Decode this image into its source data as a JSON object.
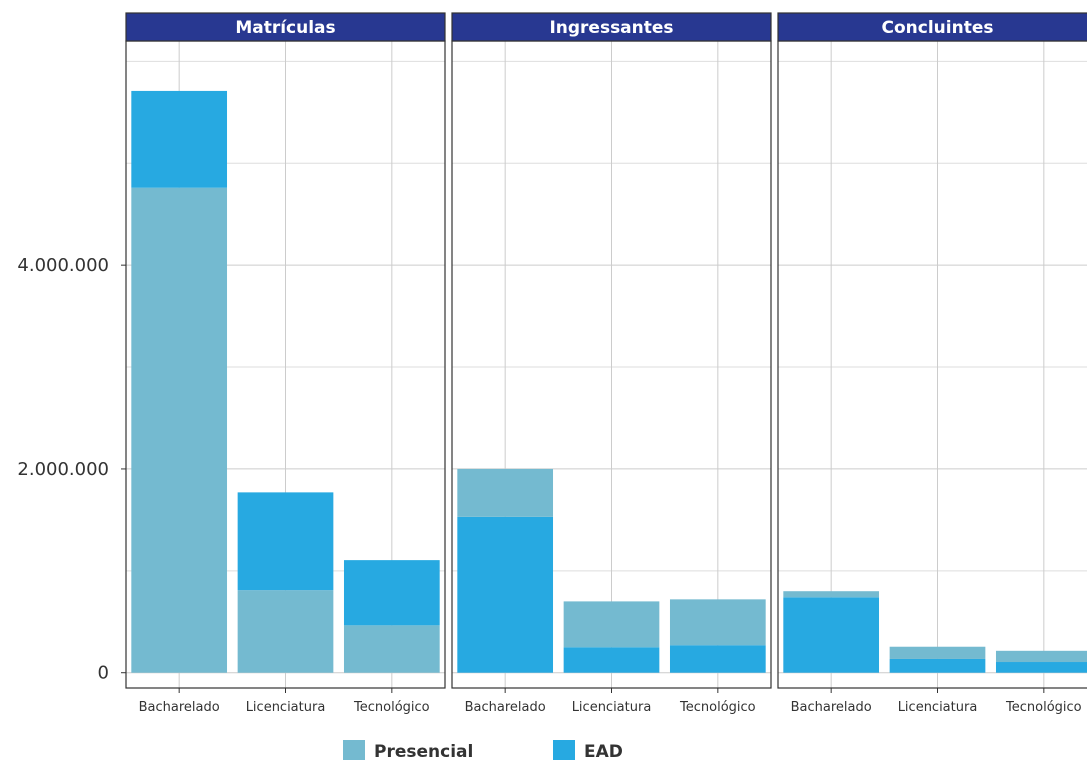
{
  "chart_data": {
    "type": "bar",
    "stacked": true,
    "facets": [
      "Matrículas",
      "Ingressantes",
      "Concluintes"
    ],
    "categories": [
      "Bacharelado",
      "Licenciatura",
      "Tecnológico"
    ],
    "series": [
      {
        "name": "Presencial",
        "color": "#74bad0"
      },
      {
        "name": "EAD",
        "color": "#27a9e1"
      }
    ],
    "panels": [
      {
        "facet": "Matrículas",
        "stack_order": [
          "Presencial",
          "EAD"
        ],
        "presencial": [
          4760000,
          810000,
          465000
        ],
        "ead": [
          950000,
          960000,
          640000
        ]
      },
      {
        "facet": "Ingressantes",
        "stack_order": [
          "EAD",
          "Presencial"
        ],
        "presencial": [
          470000,
          450000,
          450000
        ],
        "ead": [
          1530000,
          250000,
          270000
        ]
      },
      {
        "facet": "Concluintes",
        "stack_order": [
          "EAD",
          "Presencial"
        ],
        "presencial": [
          60000,
          120000,
          110000
        ],
        "ead": [
          740000,
          135000,
          105000
        ]
      }
    ],
    "y_ticks": [
      0,
      2000000,
      4000000
    ],
    "y_tick_labels": [
      "0",
      "2.000.000",
      "4.000.000"
    ],
    "ylim": [
      -150000,
      6200000
    ],
    "xlabel": "",
    "ylabel": "",
    "grid": true,
    "legend_position": "bottom"
  }
}
